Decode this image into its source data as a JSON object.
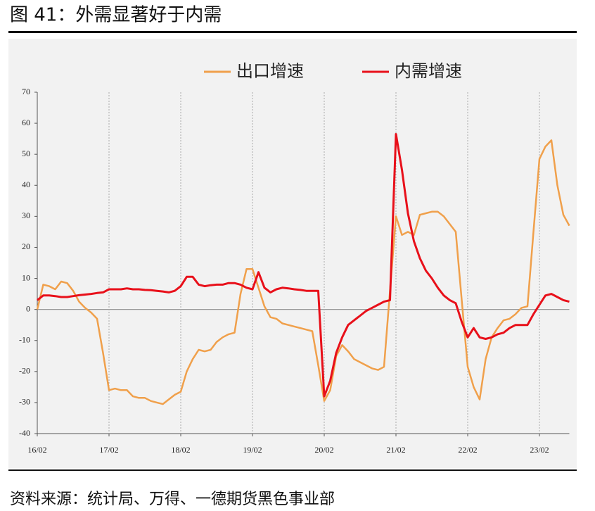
{
  "chart_data": {
    "type": "line",
    "title": "图 41：外需显著好于内需",
    "source": "资料来源：统计局、万得、一德期货黑色事业部",
    "categories": [
      "16/02",
      null,
      null,
      null,
      null,
      null,
      null,
      null,
      null,
      null,
      null,
      null,
      "17/02",
      null,
      null,
      null,
      null,
      null,
      null,
      null,
      null,
      null,
      null,
      null,
      "18/02",
      null,
      null,
      null,
      null,
      null,
      null,
      null,
      null,
      null,
      null,
      null,
      "19/02",
      null,
      null,
      null,
      null,
      null,
      null,
      null,
      null,
      null,
      null,
      null,
      "20/02",
      null,
      null,
      null,
      null,
      null,
      null,
      null,
      null,
      null,
      null,
      null,
      "21/02",
      null,
      null,
      null,
      null,
      null,
      null,
      null,
      null,
      null,
      null,
      null,
      "22/02",
      null,
      null,
      null,
      null,
      null,
      null,
      null,
      null,
      null,
      null,
      null,
      "23/02",
      null,
      null,
      null,
      null,
      null
    ],
    "series": [
      {
        "name": "出口增速",
        "color": "#f0a04b",
        "values": [
          0,
          8,
          7.5,
          6.5,
          9,
          8.5,
          6,
          2.5,
          0.5,
          -1,
          -3,
          -14,
          -26,
          -25.5,
          -26,
          -26,
          -28,
          -28.5,
          -28.5,
          -29.5,
          -30,
          -30.5,
          -29,
          -27.5,
          -26.5,
          -20,
          -16,
          -13,
          -13.5,
          -13,
          -10.5,
          -9,
          -8,
          -7.5,
          5,
          13,
          13,
          7,
          1,
          -2.5,
          -3,
          -4.5,
          -5,
          -5.5,
          -6,
          -6.5,
          -7,
          -18,
          -29.5,
          -26,
          -15,
          -11.5,
          -13.5,
          -16,
          -17,
          -18,
          -19,
          -19.5,
          -18.5,
          6,
          30,
          24,
          25,
          24,
          30.5,
          31,
          31.5,
          31.5,
          30,
          27.5,
          25,
          3,
          -18.5,
          -25,
          -29,
          -16,
          -9,
          -6,
          -3.5,
          -3,
          -1.5,
          0.5,
          1,
          25,
          48.5,
          52.5,
          54.5,
          40,
          30.5,
          27
        ]
      },
      {
        "name": "内需增速",
        "color": "#e8101a",
        "values": [
          3,
          4.5,
          4.5,
          4.3,
          4,
          4,
          4.3,
          4.6,
          4.8,
          5,
          5.3,
          5.5,
          6.5,
          6.5,
          6.5,
          6.8,
          6.5,
          6.5,
          6.3,
          6.2,
          6,
          5.8,
          5.5,
          6,
          7.5,
          10.5,
          10.5,
          8,
          7.5,
          7.8,
          8,
          8,
          8.5,
          8.5,
          8,
          7,
          6.5,
          12,
          7,
          5.5,
          6.5,
          7,
          6.8,
          6.5,
          6.3,
          6,
          6,
          6,
          -28,
          -23,
          -14,
          -9,
          -5,
          -3.5,
          -2,
          -0.5,
          0.5,
          1.5,
          2.5,
          3,
          56.5,
          45,
          31,
          22,
          16.5,
          12.5,
          10,
          7,
          4.5,
          3,
          2,
          -4,
          -9,
          -6,
          -9,
          -9.5,
          -9,
          -8,
          -7.5,
          -6,
          -5,
          -5,
          -5,
          -1.5,
          1.5,
          4.5,
          5,
          4,
          3,
          2.5
        ]
      }
    ],
    "ylim": [
      -40,
      70
    ],
    "yticks": [
      -40,
      -30,
      -20,
      -10,
      0,
      10,
      20,
      30,
      40,
      50,
      60,
      70
    ],
    "legend": "top"
  }
}
